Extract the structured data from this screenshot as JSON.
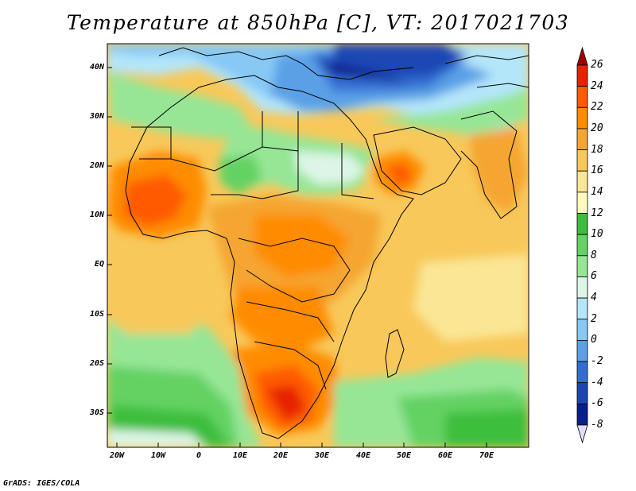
{
  "title": "Temperature at 850hPa [C], VT: 2017021703",
  "footer": "GrADS: IGES/COLA",
  "lat_labels": [
    "40N",
    "30N",
    "20N",
    "10N",
    "EQ",
    "10S",
    "20S",
    "30S"
  ],
  "lon_labels": [
    "20W",
    "10W",
    "0",
    "10E",
    "20E",
    "30E",
    "40E",
    "50E",
    "60E",
    "70E"
  ],
  "colorbar": {
    "labels": [
      "26",
      "24",
      "22",
      "20",
      "18",
      "16",
      "14",
      "12",
      "10",
      "8",
      "6",
      "4",
      "2",
      "0",
      "-2",
      "-4",
      "-6",
      "-8"
    ],
    "colors": [
      "#a00000",
      "#e62300",
      "#ff5a00",
      "#ff8c00",
      "#f5a632",
      "#f8c85a",
      "#fae694",
      "#fffbbe",
      "#3cbe3c",
      "#64d264",
      "#96e696",
      "#dcf5e6",
      "#b4e6fa",
      "#87c8f5",
      "#5aa0e6",
      "#326ed2",
      "#1e46b4",
      "#0a1e8c",
      "#e1dcfa"
    ]
  },
  "map_data": {
    "variable": "Temperature at 850hPa",
    "units": "C",
    "valid_time": "2017021703",
    "lat_range": [
      -36,
      45
    ],
    "lon_range": [
      -23,
      80
    ]
  }
}
